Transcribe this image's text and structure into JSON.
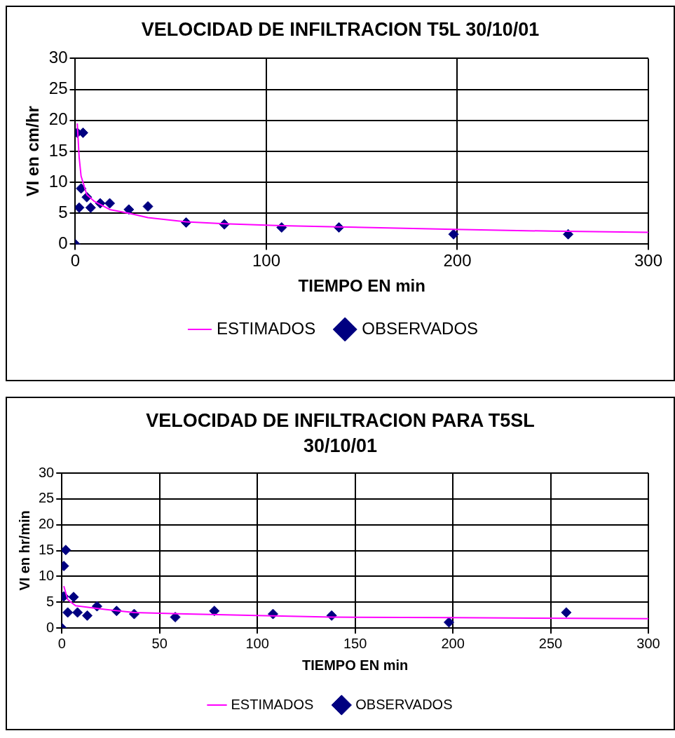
{
  "chart_data": [
    {
      "type": "scatter",
      "title": "VELOCIDAD DE INFILTRACION T5L 30/10/01",
      "xlabel": "TIEMPO EN min",
      "ylabel": "VI en cm/hr",
      "xlim": [
        0,
        300
      ],
      "xticks": [
        0,
        100,
        200,
        300
      ],
      "ylim": [
        0,
        30
      ],
      "yticks": [
        0,
        5,
        10,
        15,
        20,
        25,
        30
      ],
      "grid": true,
      "legend": "bottom",
      "series": [
        {
          "name": "OBSERVADOS",
          "type": "scatter",
          "color": "#000080",
          "marker": "diamond",
          "x": [
            0,
            1,
            2,
            3,
            4,
            6,
            8,
            13,
            18,
            28,
            38,
            58,
            78,
            108,
            138,
            198,
            258
          ],
          "values": [
            0,
            18,
            5.9,
            9,
            18,
            7.6,
            5.9,
            6.6,
            6.6,
            5.6,
            6.1,
            3.5,
            3.2,
            2.7,
            2.7,
            1.6,
            1.6
          ]
        },
        {
          "name": "ESTIMADOS",
          "type": "line",
          "color": "#ff00ff",
          "marker": "none",
          "line_style": "solid",
          "x": [
            1,
            2,
            3,
            6,
            10,
            18,
            28,
            38,
            58,
            78,
            108,
            138,
            198,
            250,
            300
          ],
          "values": [
            19.5,
            14,
            11,
            8,
            6.9,
            5.6,
            5,
            4.3,
            3.6,
            3.3,
            3,
            2.8,
            2.4,
            2.1,
            1.9
          ]
        }
      ]
    },
    {
      "type": "scatter",
      "title": "VELOCIDAD DE INFILTRACION PARA T5SL 30/10/01",
      "xlabel": "TIEMPO EN min",
      "ylabel": "VI en hr/min",
      "xlim": [
        0,
        300
      ],
      "xticks": [
        0,
        50,
        100,
        150,
        200,
        250,
        300
      ],
      "ylim": [
        0,
        30
      ],
      "yticks": [
        0,
        5,
        10,
        15,
        20,
        25,
        30
      ],
      "grid": true,
      "legend": "bottom",
      "series": [
        {
          "name": "OBSERVADOS",
          "type": "scatter",
          "color": "#000080",
          "marker": "diamond",
          "x": [
            0,
            1,
            2,
            1,
            3,
            6,
            8,
            13,
            18,
            28,
            37,
            58,
            78,
            108,
            138,
            198,
            258
          ],
          "values": [
            0,
            12,
            15.1,
            6.1,
            3,
            6,
            3,
            2.4,
            4.2,
            3.3,
            2.7,
            2.1,
            3.3,
            2.7,
            2.4,
            1.1,
            3
          ]
        },
        {
          "name": "ESTIMADOS",
          "type": "line",
          "color": "#ff00ff",
          "marker": "none",
          "line_style": "solid",
          "x": [
            1,
            3,
            7,
            22,
            37,
            64,
            100,
            138,
            200,
            300
          ],
          "values": [
            8.1,
            5.5,
            4.3,
            3.6,
            3,
            2.7,
            2.4,
            2.1,
            2,
            1.8
          ]
        }
      ]
    }
  ]
}
